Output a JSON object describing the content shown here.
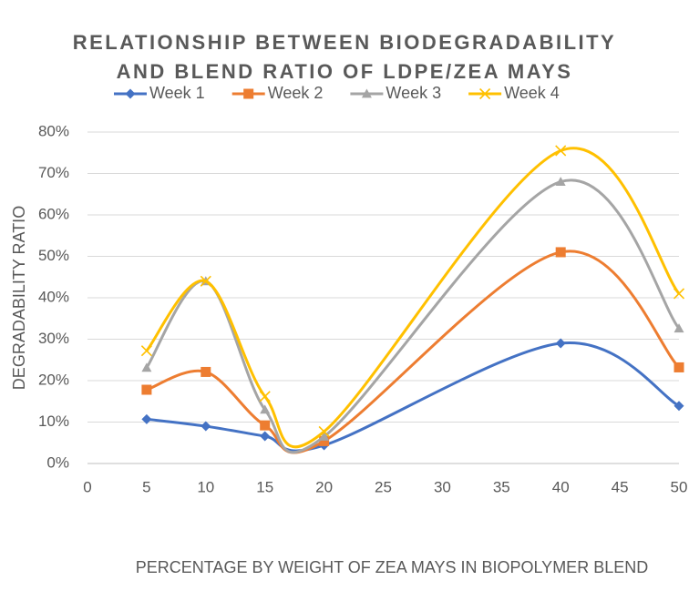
{
  "chart_data": {
    "type": "line",
    "title": [
      "RELATIONSHIP BETWEEN BIODEGRADABILITY",
      "AND BLEND RATIO OF LDPE/ZEA MAYS"
    ],
    "x_label": "PERCENTAGE BY WEIGHT OF ZEA MAYS IN BIOPOLYMER BLEND",
    "y_label": "DEGRADABILITY RATIO",
    "x": [
      5,
      10,
      15,
      20,
      40,
      50
    ],
    "series": [
      {
        "name": "Week 1",
        "color": "#4472c4",
        "marker": "diamond",
        "values": [
          10.7,
          9,
          6.6,
          4.4,
          29,
          13.9
        ]
      },
      {
        "name": "Week 2",
        "color": "#ed7d31",
        "marker": "square",
        "values": [
          17.8,
          22.1,
          9.2,
          5.4,
          51,
          23.2
        ]
      },
      {
        "name": "Week 3",
        "color": "#a5a5a5",
        "marker": "triangle",
        "values": [
          23.1,
          44,
          13,
          6.5,
          68,
          32.6
        ]
      },
      {
        "name": "Week 4",
        "color": "#ffc000",
        "marker": "x",
        "values": [
          27.2,
          44,
          16.2,
          7.7,
          75.5,
          41
        ]
      }
    ],
    "xlim": [
      0,
      50
    ],
    "xticks": [
      0,
      5,
      10,
      15,
      20,
      25,
      30,
      35,
      40,
      45,
      50
    ],
    "ylim": [
      0,
      80
    ],
    "yticks": [
      {
        "value": 0,
        "label": "0%"
      },
      {
        "value": 10,
        "label": "10%"
      },
      {
        "value": 20,
        "label": "20%"
      },
      {
        "value": 30,
        "label": "30%"
      },
      {
        "value": 40,
        "label": "40%"
      },
      {
        "value": 50,
        "label": "50%"
      },
      {
        "value": 60,
        "label": "60%"
      },
      {
        "value": 70,
        "label": "70%"
      },
      {
        "value": 80,
        "label": "80%"
      }
    ],
    "grid": true,
    "smooth": true,
    "legend": "top"
  }
}
